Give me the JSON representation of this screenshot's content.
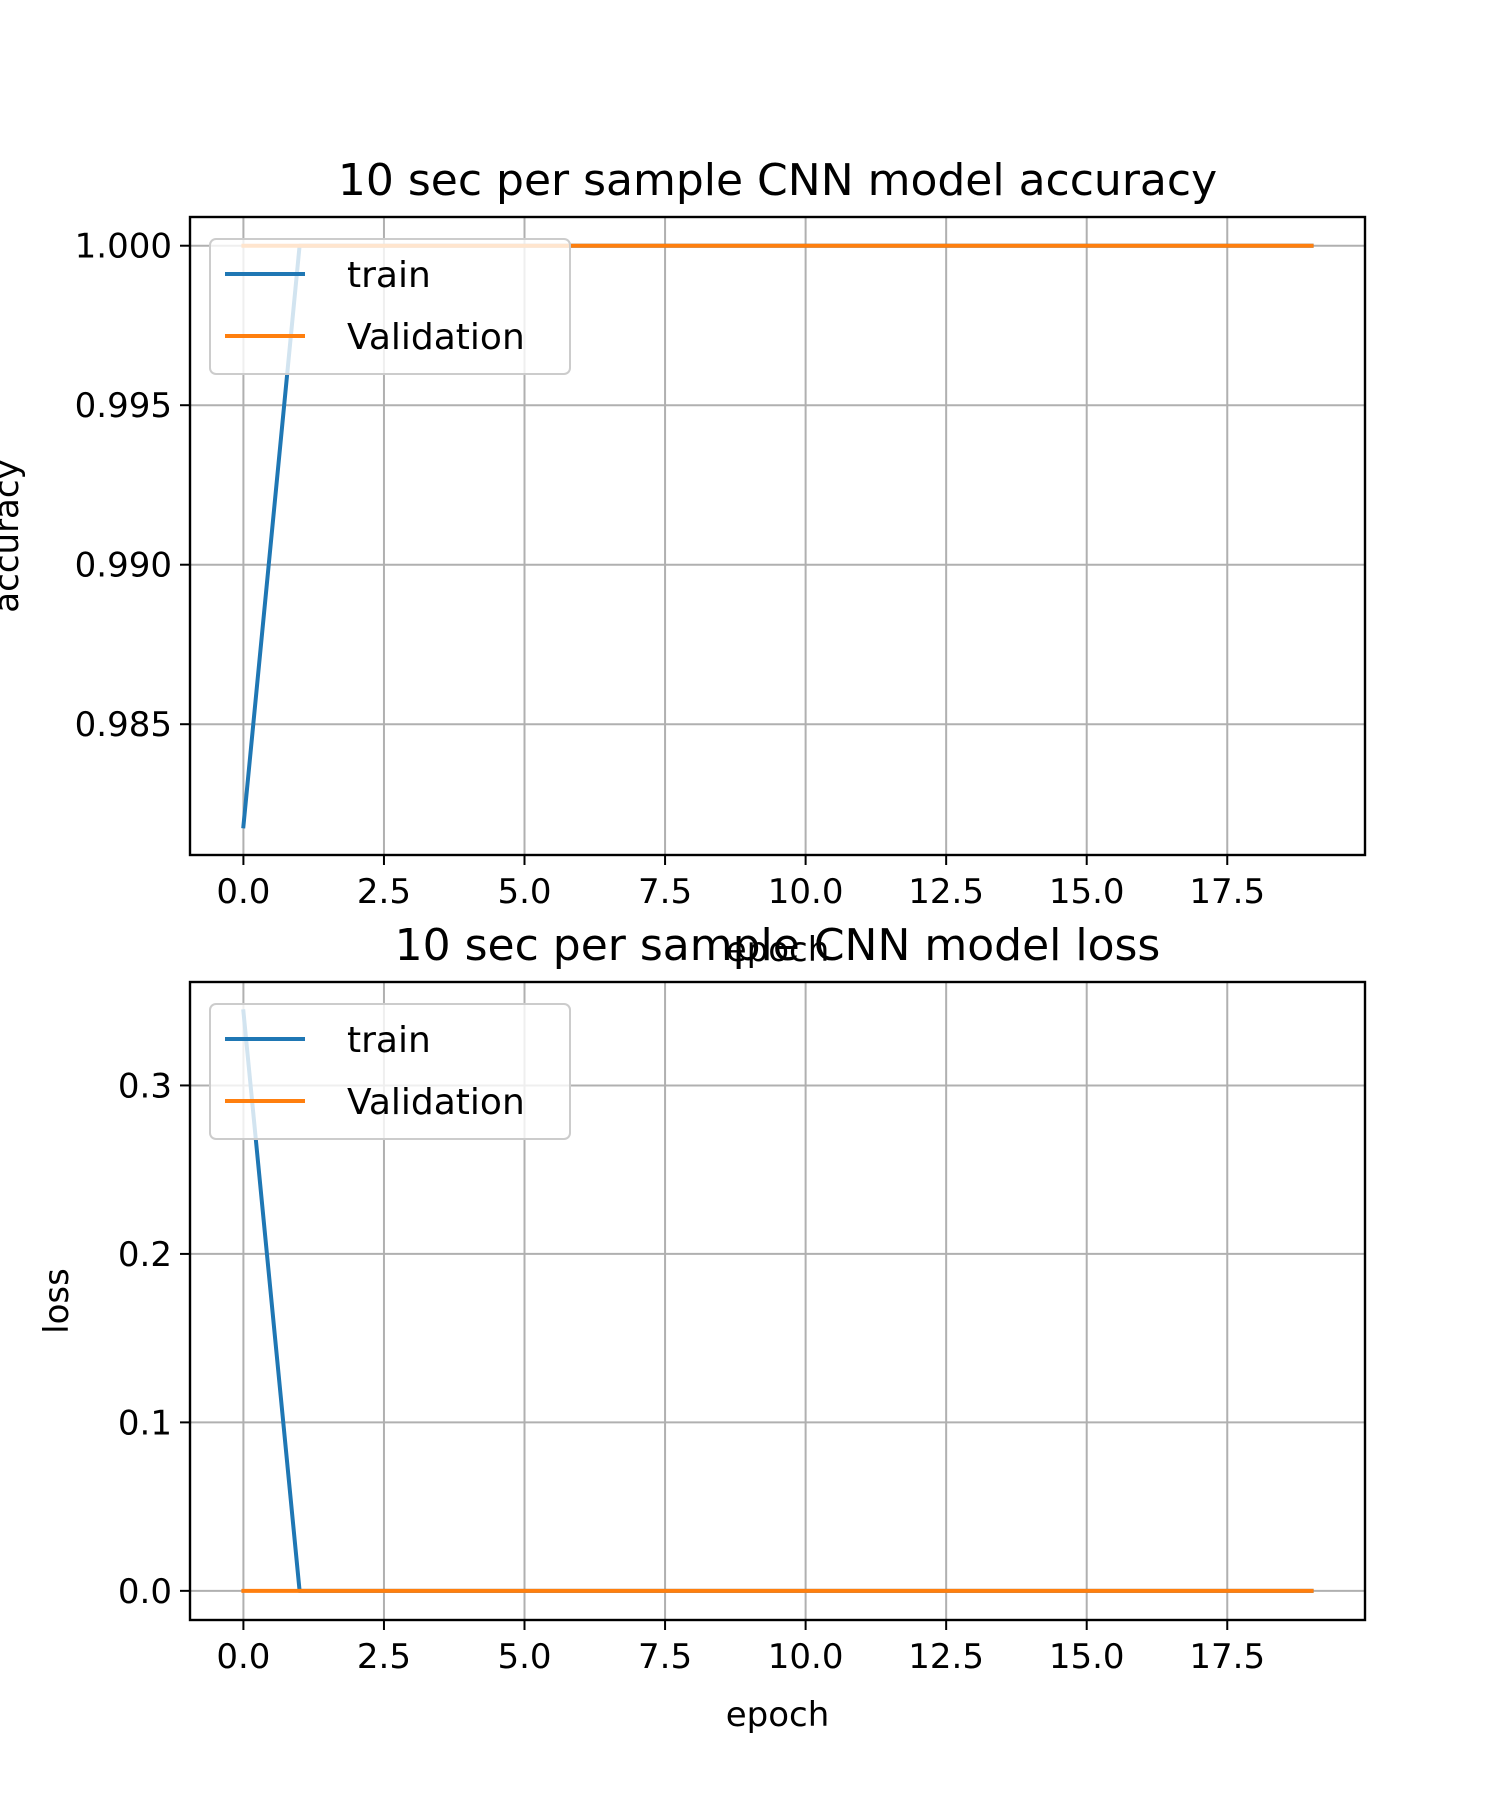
{
  "chart_data": [
    {
      "type": "line",
      "title": "10 sec per sample CNN model accuracy",
      "xlabel": "epoch",
      "ylabel": "accuracy",
      "xlim": [
        -0.95,
        19.95
      ],
      "ylim": [
        0.9809,
        1.0009
      ],
      "xticks": [
        0.0,
        2.5,
        5.0,
        7.5,
        10.0,
        12.5,
        15.0,
        17.5
      ],
      "xtick_labels": [
        "0.0",
        "2.5",
        "5.0",
        "7.5",
        "10.0",
        "12.5",
        "15.0",
        "17.5"
      ],
      "yticks": [
        0.985,
        0.99,
        0.995,
        1.0
      ],
      "ytick_labels": [
        "0.985",
        "0.990",
        "0.995",
        "1.000"
      ],
      "grid": true,
      "legend_position": "upper-left",
      "x": [
        0,
        1,
        2,
        3,
        4,
        5,
        6,
        7,
        8,
        9,
        10,
        11,
        12,
        13,
        14,
        15,
        16,
        17,
        18,
        19
      ],
      "series": [
        {
          "name": "train",
          "color": "#1f77b4",
          "values": [
            0.9818,
            1.0,
            1.0,
            1.0,
            1.0,
            1.0,
            1.0,
            1.0,
            1.0,
            1.0,
            1.0,
            1.0,
            1.0,
            1.0,
            1.0,
            1.0,
            1.0,
            1.0,
            1.0,
            1.0
          ]
        },
        {
          "name": "Validation",
          "color": "#ff7f0e",
          "values": [
            1.0,
            1.0,
            1.0,
            1.0,
            1.0,
            1.0,
            1.0,
            1.0,
            1.0,
            1.0,
            1.0,
            1.0,
            1.0,
            1.0,
            1.0,
            1.0,
            1.0,
            1.0,
            1.0,
            1.0
          ]
        }
      ]
    },
    {
      "type": "line",
      "title": "10 sec per sample CNN model loss",
      "xlabel": "epoch",
      "ylabel": "loss",
      "xlim": [
        -0.95,
        19.95
      ],
      "ylim": [
        -0.0173,
        0.3614
      ],
      "xticks": [
        0.0,
        2.5,
        5.0,
        7.5,
        10.0,
        12.5,
        15.0,
        17.5
      ],
      "xtick_labels": [
        "0.0",
        "2.5",
        "5.0",
        "7.5",
        "10.0",
        "12.5",
        "15.0",
        "17.5"
      ],
      "yticks": [
        0.0,
        0.1,
        0.2,
        0.3
      ],
      "ytick_labels": [
        "0.0",
        "0.1",
        "0.2",
        "0.3"
      ],
      "grid": true,
      "legend_position": "upper-left",
      "x": [
        0,
        1,
        2,
        3,
        4,
        5,
        6,
        7,
        8,
        9,
        10,
        11,
        12,
        13,
        14,
        15,
        16,
        17,
        18,
        19
      ],
      "series": [
        {
          "name": "train",
          "color": "#1f77b4",
          "values": [
            0.344,
            0.0,
            0.0,
            0.0,
            0.0,
            0.0,
            0.0,
            0.0,
            0.0,
            0.0,
            0.0,
            0.0,
            0.0,
            0.0,
            0.0,
            0.0,
            0.0,
            0.0,
            0.0,
            0.0
          ]
        },
        {
          "name": "Validation",
          "color": "#ff7f0e",
          "values": [
            0.0,
            0.0,
            0.0,
            0.0,
            0.0,
            0.0,
            0.0,
            0.0,
            0.0,
            0.0,
            0.0,
            0.0,
            0.0,
            0.0,
            0.0,
            0.0,
            0.0,
            0.0,
            0.0,
            0.0
          ]
        }
      ]
    }
  ]
}
